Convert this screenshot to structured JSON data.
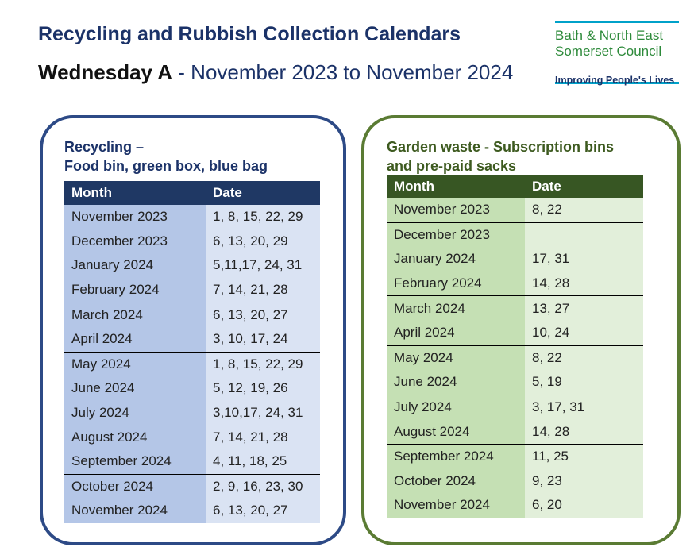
{
  "header": {
    "title": "Recycling and Rubbish Collection Calendars",
    "subtitle_strong": "Wednesday A",
    "subtitle_rest": " - November 2023 to November 2024"
  },
  "logo": {
    "line1": "Bath & North East",
    "line2": "Somerset Council",
    "tagline": "Improving People's Lives"
  },
  "recycling": {
    "title_line1": "Recycling –",
    "title_line2": "Food bin, green box, blue bag",
    "headers": {
      "month": "Month",
      "date": "Date"
    },
    "rows": [
      {
        "month": "November 2023",
        "dates": "1, 8, 15, 22, 29"
      },
      {
        "month": "December 2023",
        "dates": "6, 13, 20, 29"
      },
      {
        "month": "January 2024",
        "dates": "5,11,17, 24, 31"
      },
      {
        "month": "February 2024",
        "dates": "7, 14, 21, 28"
      },
      {
        "month": "March 2024",
        "dates": "6, 13, 20, 27"
      },
      {
        "month": "April 2024",
        "dates": "3, 10, 17, 24"
      },
      {
        "month": "May 2024",
        "dates": "1, 8, 15, 22, 29"
      },
      {
        "month": "June 2024",
        "dates": "5, 12, 19, 26"
      },
      {
        "month": "July 2024",
        "dates": "3,10,17, 24, 31"
      },
      {
        "month": "August 2024",
        "dates": "7, 14, 21, 28"
      },
      {
        "month": "September 2024",
        "dates": "4, 11, 18, 25"
      },
      {
        "month": "October 2024",
        "dates": "2, 9, 16, 23, 30"
      },
      {
        "month": "November 2024",
        "dates": "6, 13, 20, 27"
      }
    ]
  },
  "garden": {
    "title_line1": "Garden waste - Subscription bins",
    "title_line2": "and pre-paid sacks",
    "headers": {
      "month": "Month",
      "date": "Date"
    },
    "rows": [
      {
        "month": "November 2023",
        "dates": "8, 22"
      },
      {
        "month": "December 2023",
        "dates": ""
      },
      {
        "month": "January 2024",
        "dates": "17, 31"
      },
      {
        "month": "February 2024",
        "dates": "14, 28"
      },
      {
        "month": "March 2024",
        "dates": "13, 27"
      },
      {
        "month": "April 2024",
        "dates": "10, 24"
      },
      {
        "month": "May 2024",
        "dates": "8, 22"
      },
      {
        "month": "June 2024",
        "dates": "5, 19"
      },
      {
        "month": "July 2024",
        "dates": "3, 17, 31"
      },
      {
        "month": "August 2024",
        "dates": "14, 28"
      },
      {
        "month": "September 2024",
        "dates": "11, 25"
      },
      {
        "month": "October 2024",
        "dates": "9, 23"
      },
      {
        "month": "November 2024",
        "dates": "6, 20"
      }
    ]
  }
}
